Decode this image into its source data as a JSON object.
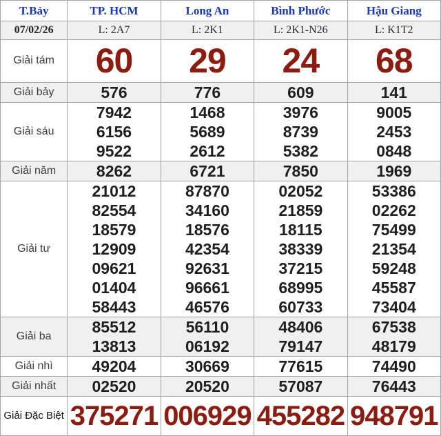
{
  "colors": {
    "header_blue": "#1b35bb",
    "prize_red": "#8c1b10",
    "number_black": "#1f1f1f",
    "border": "#a3a3a3",
    "shaded_row": "#f0f0f0"
  },
  "table": {
    "day_label": "T.Bảy",
    "stations": [
      "TP. HCM",
      "Long An",
      "Bình Phước",
      "Hậu Giang"
    ],
    "date": "07/02/26",
    "station_codes": [
      "L: 2A7",
      "L: 2K1",
      "L: 2K1-N26",
      "L: K1T2"
    ],
    "prize_rows": [
      {
        "label": "Giải tám",
        "values": [
          [
            "60"
          ],
          [
            "29"
          ],
          [
            "24"
          ],
          [
            "68"
          ]
        ]
      },
      {
        "label": "Giải bảy",
        "values": [
          [
            "576"
          ],
          [
            "776"
          ],
          [
            "609"
          ],
          [
            "141"
          ]
        ]
      },
      {
        "label": "Giải sáu",
        "values": [
          [
            "7942",
            "6156",
            "9522"
          ],
          [
            "1468",
            "5689",
            "2612"
          ],
          [
            "3976",
            "8739",
            "5382"
          ],
          [
            "9005",
            "2453",
            "0848"
          ]
        ]
      },
      {
        "label": "Giải năm",
        "values": [
          [
            "8262"
          ],
          [
            "6721"
          ],
          [
            "7850"
          ],
          [
            "1969"
          ]
        ]
      },
      {
        "label": "Giải tư",
        "values": [
          [
            "21012",
            "82554",
            "18579",
            "12909",
            "09621",
            "01404",
            "58443"
          ],
          [
            "87870",
            "34160",
            "18576",
            "42354",
            "92631",
            "96661",
            "46576"
          ],
          [
            "02052",
            "21859",
            "18115",
            "38339",
            "37215",
            "68995",
            "60733"
          ],
          [
            "53386",
            "02262",
            "75499",
            "21354",
            "59248",
            "45587",
            "73404"
          ]
        ]
      },
      {
        "label": "Giải ba",
        "values": [
          [
            "85512",
            "13813"
          ],
          [
            "56110",
            "06192"
          ],
          [
            "48406",
            "79147"
          ],
          [
            "67538",
            "48179"
          ]
        ]
      },
      {
        "label": "Giải nhì",
        "values": [
          [
            "49204"
          ],
          [
            "30669"
          ],
          [
            "77615"
          ],
          [
            "74490"
          ]
        ]
      },
      {
        "label": "Giải nhất",
        "values": [
          [
            "02520"
          ],
          [
            "20520"
          ],
          [
            "57087"
          ],
          [
            "76443"
          ]
        ]
      },
      {
        "label": "Giải Đặc Biệt",
        "values": [
          [
            "375271"
          ],
          [
            "006929"
          ],
          [
            "455282"
          ],
          [
            "948791"
          ]
        ]
      }
    ]
  }
}
